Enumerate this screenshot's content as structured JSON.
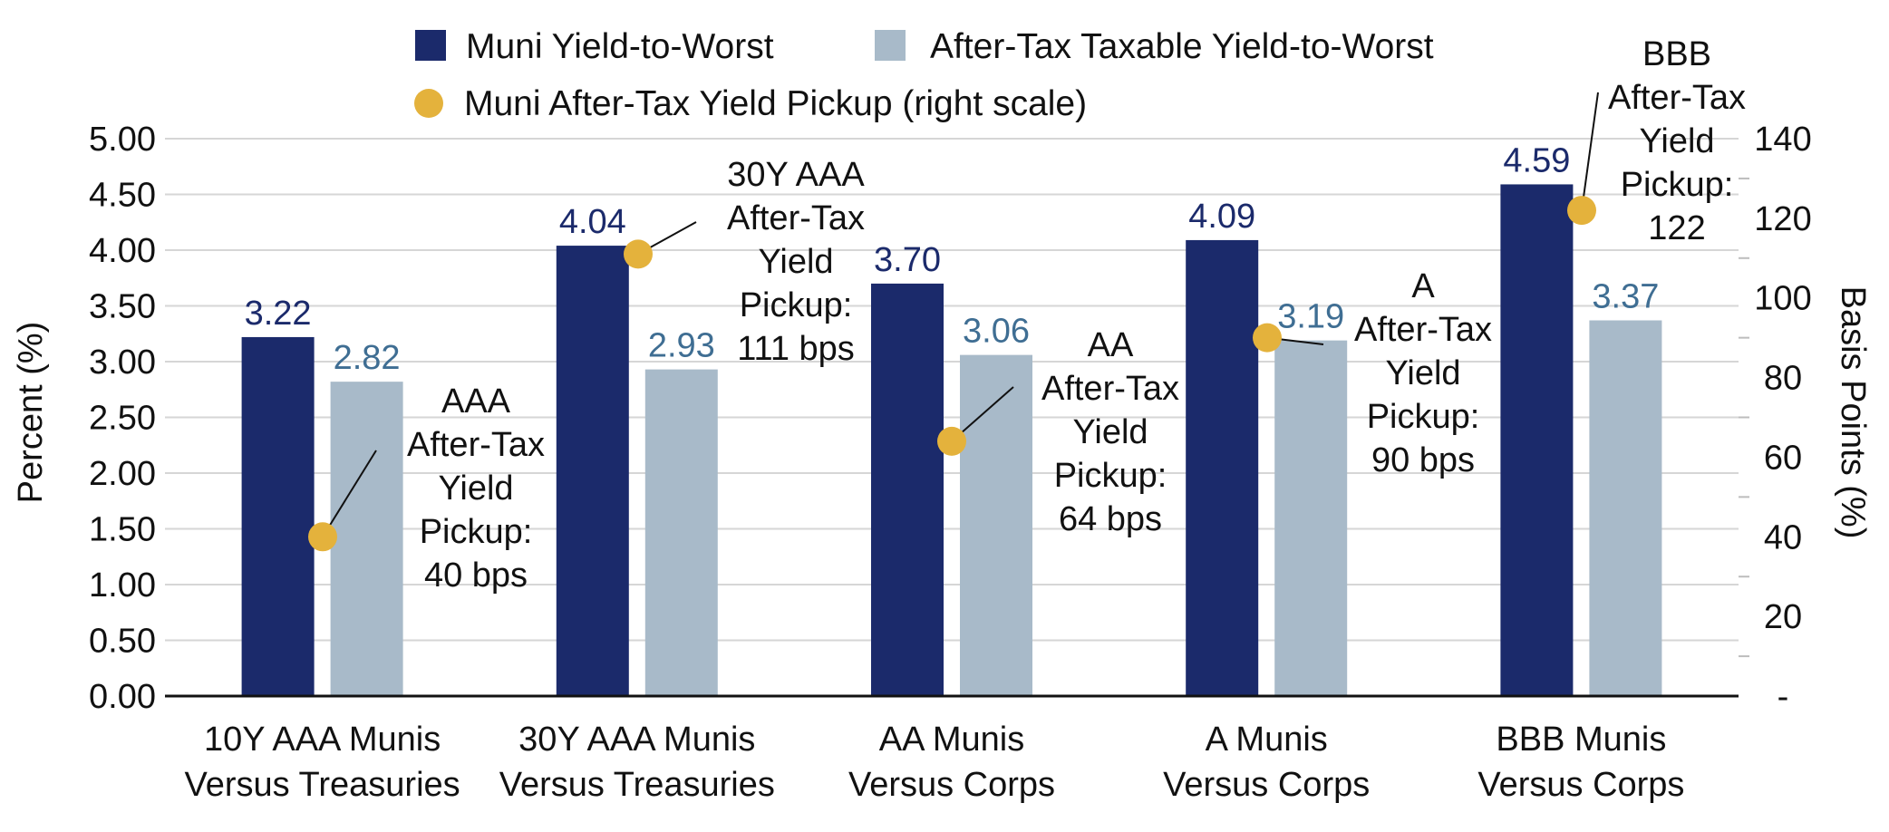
{
  "chart_data": {
    "type": "bar",
    "categories": [
      [
        "10Y AAA Munis",
        "Versus Treasuries"
      ],
      [
        "30Y AAA Munis",
        "Versus Treasuries"
      ],
      [
        "AA Munis",
        "Versus Corps"
      ],
      [
        "A Munis",
        "Versus Corps"
      ],
      [
        "BBB Munis",
        "Versus Corps"
      ]
    ],
    "series": [
      {
        "name": "Muni Yield-to-Worst",
        "axis": "left",
        "kind": "bar",
        "color": "#1b2a6b",
        "label_color": "#1b2a6b",
        "values": [
          3.22,
          4.04,
          3.7,
          4.09,
          4.59
        ]
      },
      {
        "name": "After-Tax Taxable Yield-to-Worst",
        "axis": "left",
        "kind": "bar",
        "color": "#a8bac9",
        "label_color": "#3f6e93",
        "values": [
          2.82,
          2.93,
          3.06,
          3.19,
          3.37
        ]
      },
      {
        "name": "Muni After-Tax Yield Pickup (right scale)",
        "axis": "right",
        "kind": "point",
        "color": "#e4b23c",
        "values": [
          40,
          111,
          64,
          90,
          122
        ]
      }
    ],
    "value_labels": {
      "Muni Yield-to-Worst": [
        "3.22",
        "4.04",
        "3.70",
        "4.09",
        "4.59"
      ],
      "After-Tax Taxable Yield-to-Worst": [
        "2.82",
        "2.93",
        "3.06",
        "3.19",
        "3.37"
      ]
    },
    "annotations": [
      [
        "AAA",
        "After-Tax",
        "Yield",
        "Pickup:",
        "40 bps"
      ],
      [
        "30Y AAA",
        "After-Tax",
        "Yield",
        "Pickup:",
        "111 bps"
      ],
      [
        "AA",
        "After-Tax",
        "Yield",
        "Pickup:",
        "64 bps"
      ],
      [
        "A",
        "After-Tax",
        "Yield",
        "Pickup:",
        "90 bps"
      ],
      [
        "BBB",
        "After-Tax",
        "Yield",
        "Pickup:",
        "122"
      ]
    ],
    "ylabel": "Percent (%)",
    "y2label": "Basis Points (%)",
    "ylim": [
      0,
      5
    ],
    "y2lim": [
      0,
      140
    ],
    "yticks": [
      "0.00",
      "0.50",
      "1.00",
      "1.50",
      "2.00",
      "2.50",
      "3.00",
      "3.50",
      "4.00",
      "4.50",
      "5.00"
    ],
    "y2ticks": [
      "-",
      "20",
      "40",
      "60",
      "80",
      "100",
      "120",
      "140"
    ],
    "grid": true,
    "legend_position": "top"
  }
}
